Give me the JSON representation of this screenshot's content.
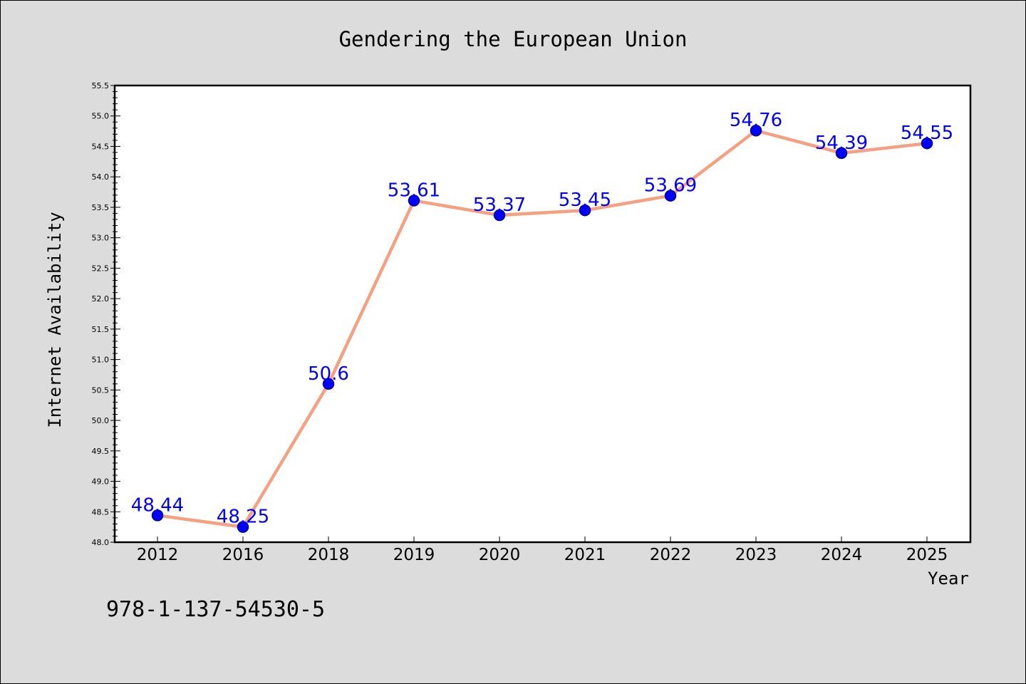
{
  "chart_data": {
    "type": "line",
    "title": "Gendering the European Union",
    "xlabel": "Year",
    "ylabel": "Internet Availability",
    "categories": [
      "2012",
      "2016",
      "2018",
      "2019",
      "2020",
      "2021",
      "2022",
      "2023",
      "2024",
      "2025"
    ],
    "series": [
      {
        "values": [
          48.44,
          48.25,
          50.6,
          53.61,
          53.37,
          53.45,
          53.69,
          54.76,
          54.39,
          54.55
        ],
        "labels": [
          "48.44",
          "48.25",
          "50.6",
          "53.61",
          "53.37",
          "53.45",
          "53.69",
          "54.76",
          "54.39",
          "54.55"
        ]
      }
    ],
    "ylim": [
      48.0,
      55.5
    ],
    "y_major_ticks": [
      "48.0",
      "48.5",
      "49.0",
      "49.5",
      "50.0",
      "50.5",
      "51.0",
      "51.5",
      "52.0",
      "52.5",
      "53.0",
      "53.5",
      "54.0",
      "54.5",
      "55.0",
      "55.5"
    ],
    "y_minor_step": 0.1,
    "grid": false,
    "legend": "none",
    "colors": {
      "line": "#f4a081",
      "marker_fill": "#0000ff",
      "marker_edge": "#00008b",
      "data_label": "#0000ff",
      "figure_bg": "#dcdcdc",
      "plot_bg": "#ffffff"
    }
  },
  "footnote": "978-1-137-54530-5"
}
